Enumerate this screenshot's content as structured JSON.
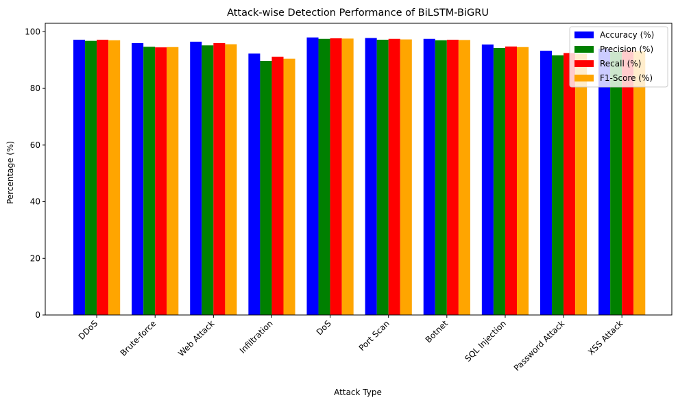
{
  "chart_data": {
    "type": "bar",
    "title": "Attack-wise Detection Performance of BiLSTM-BiGRU",
    "xlabel": "Attack Type",
    "ylabel": "Percentage (%)",
    "ylim": [
      0,
      103
    ],
    "yticks": [
      0,
      20,
      40,
      60,
      80,
      100
    ],
    "grid": false,
    "legend_position": "top-right",
    "categories": [
      "DDoS",
      "Brute-force",
      "Web Attack",
      "Infiltration",
      "DoS",
      "Port Scan",
      "Botnet",
      "SQL Injection",
      "Password Attack",
      "XSS Attack"
    ],
    "series": [
      {
        "name": "Accuracy (%)",
        "color": "#0000ff",
        "values": [
          97.2,
          96.0,
          96.5,
          92.3,
          98.0,
          97.8,
          97.5,
          95.5,
          93.3,
          94.0
        ]
      },
      {
        "name": "Precision (%)",
        "color": "#008000",
        "values": [
          96.8,
          94.7,
          95.2,
          89.7,
          97.5,
          97.2,
          97.0,
          94.3,
          91.7,
          93.0
        ]
      },
      {
        "name": "Recall (%)",
        "color": "#ff0000",
        "values": [
          97.2,
          94.5,
          96.0,
          91.2,
          97.7,
          97.5,
          97.2,
          94.8,
          92.5,
          93.5
        ]
      },
      {
        "name": "F1-Score (%)",
        "color": "#ffa500",
        "values": [
          97.0,
          94.6,
          95.6,
          90.5,
          97.6,
          97.3,
          97.1,
          94.6,
          92.1,
          93.2
        ]
      }
    ]
  }
}
